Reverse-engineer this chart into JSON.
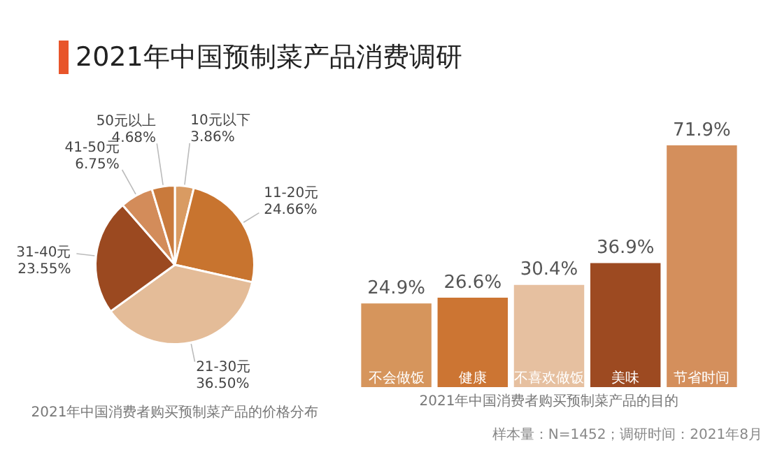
{
  "chart_data": [
    {
      "type": "pie",
      "title": "2021年中国预制菜产品消费调研",
      "categories": [
        "10元以下",
        "11-20元",
        "21-30元",
        "31-40元",
        "41-50元",
        "50元以上"
      ],
      "values": [
        3.86,
        24.66,
        36.5,
        23.55,
        6.75,
        4.68
      ],
      "value_labels": [
        "3.86%",
        "24.66%",
        "36.50%",
        "23.55%",
        "6.75%",
        "4.68%"
      ],
      "colors": [
        "#d99b62",
        "#c8742f",
        "#e4bc98",
        "#9b4920",
        "#d38c5a",
        "#c97a3c"
      ],
      "annotations": [
        "2021年中国消费者购买预制菜产品的价格分布"
      ]
    },
    {
      "type": "bar",
      "categories": [
        "不会做饭",
        "健康",
        "不喜欢做饭",
        "美味",
        "节省时间"
      ],
      "values": [
        24.9,
        26.6,
        30.4,
        36.9,
        71.9
      ],
      "value_labels": [
        "24.9%",
        "26.6%",
        "30.4%",
        "36.9%",
        "71.9%"
      ],
      "colors": [
        "#d6955c",
        "#cc7533",
        "#e6c0a0",
        "#9d4a21",
        "#d48f5c"
      ],
      "annotations": [
        "2021年中国消费者购买预制菜产品的目的",
        "样本量：N=1452；调研时间：2021年8月"
      ]
    }
  ]
}
